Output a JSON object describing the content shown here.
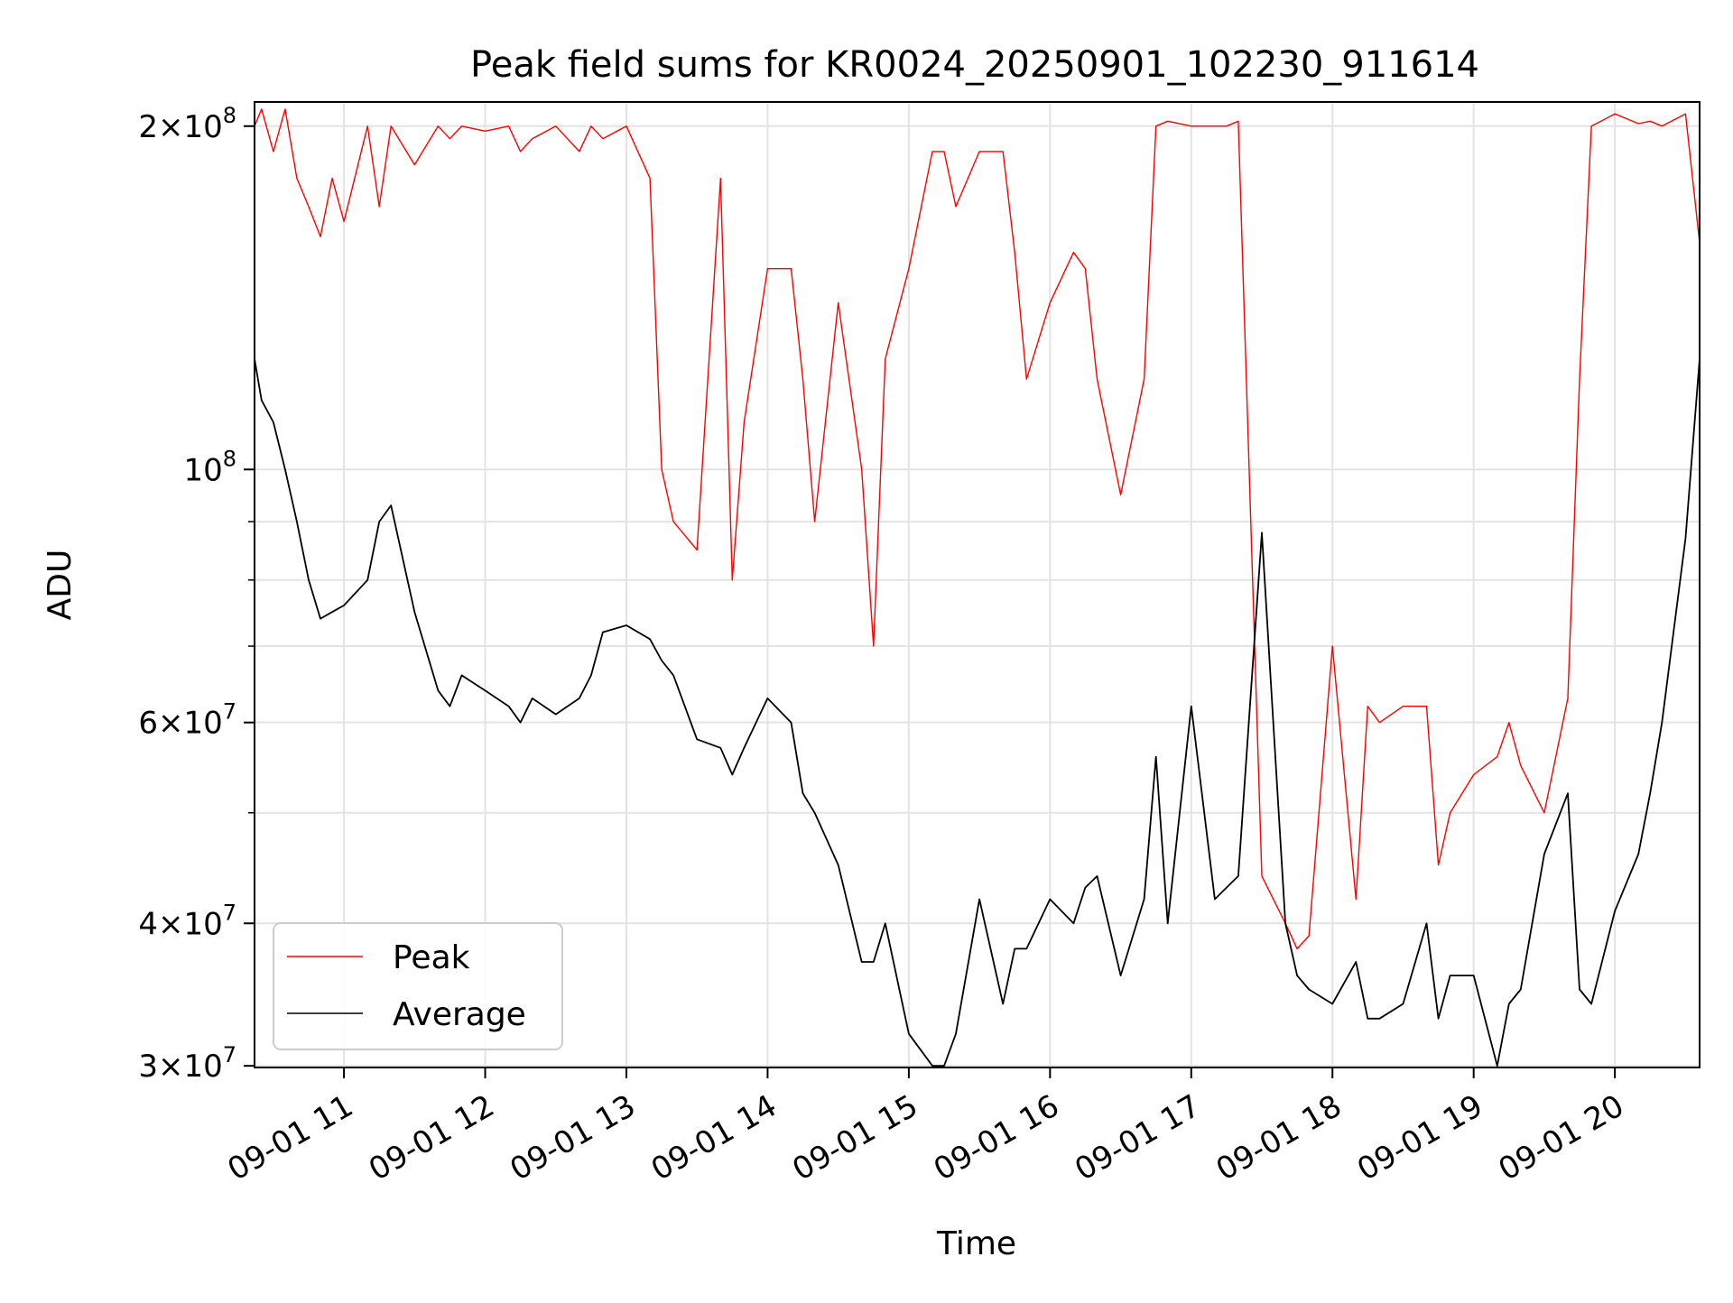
{
  "chart_data": {
    "type": "line",
    "title": "Peak field sums for KR0024_20250901_102230_911614",
    "xlabel": "Time",
    "ylabel": "ADU",
    "yscale": "log",
    "xlim": [
      "2025-09-01 10:22",
      "2025-09-01 20:36"
    ],
    "ylim": [
      29900000,
      210000000
    ],
    "grid": true,
    "legend_position": "lower-left",
    "x_ticks": [
      {
        "value": "2025-09-01 11:00",
        "label": "09-01 11"
      },
      {
        "value": "2025-09-01 12:00",
        "label": "09-01 12"
      },
      {
        "value": "2025-09-01 13:00",
        "label": "09-01 13"
      },
      {
        "value": "2025-09-01 14:00",
        "label": "09-01 14"
      },
      {
        "value": "2025-09-01 15:00",
        "label": "09-01 15"
      },
      {
        "value": "2025-09-01 16:00",
        "label": "09-01 16"
      },
      {
        "value": "2025-09-01 17:00",
        "label": "09-01 17"
      },
      {
        "value": "2025-09-01 18:00",
        "label": "09-01 18"
      },
      {
        "value": "2025-09-01 19:00",
        "label": "09-01 19"
      },
      {
        "value": "2025-09-01 20:00",
        "label": "09-01 20"
      }
    ],
    "y_ticks": [
      {
        "value": 30000000,
        "mantissa": "3",
        "exponent": "7"
      },
      {
        "value": 40000000,
        "mantissa": "4",
        "exponent": "7"
      },
      {
        "value": 60000000,
        "mantissa": "6",
        "exponent": "7"
      },
      {
        "value": 100000000,
        "mantissa": "",
        "exponent": "8"
      },
      {
        "value": 200000000,
        "mantissa": "2",
        "exponent": "8"
      }
    ],
    "y_minor_ticks": [
      50000000,
      70000000,
      80000000,
      90000000
    ],
    "series": [
      {
        "name": "Peak",
        "color": "#ff0000",
        "x": [
          "2025-09-01 10:22",
          "2025-09-01 10:25",
          "2025-09-01 10:30",
          "2025-09-01 10:35",
          "2025-09-01 10:40",
          "2025-09-01 10:45",
          "2025-09-01 10:50",
          "2025-09-01 10:55",
          "2025-09-01 11:00",
          "2025-09-01 11:10",
          "2025-09-01 11:15",
          "2025-09-01 11:20",
          "2025-09-01 11:30",
          "2025-09-01 11:40",
          "2025-09-01 11:45",
          "2025-09-01 11:50",
          "2025-09-01 12:00",
          "2025-09-01 12:10",
          "2025-09-01 12:15",
          "2025-09-01 12:20",
          "2025-09-01 12:30",
          "2025-09-01 12:40",
          "2025-09-01 12:45",
          "2025-09-01 12:50",
          "2025-09-01 13:00",
          "2025-09-01 13:10",
          "2025-09-01 13:15",
          "2025-09-01 13:20",
          "2025-09-01 13:30",
          "2025-09-01 13:40",
          "2025-09-01 13:45",
          "2025-09-01 13:50",
          "2025-09-01 14:00",
          "2025-09-01 14:10",
          "2025-09-01 14:15",
          "2025-09-01 14:20",
          "2025-09-01 14:30",
          "2025-09-01 14:40",
          "2025-09-01 14:45",
          "2025-09-01 14:50",
          "2025-09-01 15:00",
          "2025-09-01 15:10",
          "2025-09-01 15:15",
          "2025-09-01 15:20",
          "2025-09-01 15:30",
          "2025-09-01 15:40",
          "2025-09-01 15:45",
          "2025-09-01 15:50",
          "2025-09-01 16:00",
          "2025-09-01 16:10",
          "2025-09-01 16:15",
          "2025-09-01 16:20",
          "2025-09-01 16:30",
          "2025-09-01 16:40",
          "2025-09-01 16:45",
          "2025-09-01 16:50",
          "2025-09-01 17:00",
          "2025-09-01 17:10",
          "2025-09-01 17:15",
          "2025-09-01 17:20",
          "2025-09-01 17:30",
          "2025-09-01 17:40",
          "2025-09-01 17:45",
          "2025-09-01 17:50",
          "2025-09-01 18:00",
          "2025-09-01 18:10",
          "2025-09-01 18:15",
          "2025-09-01 18:20",
          "2025-09-01 18:30",
          "2025-09-01 18:40",
          "2025-09-01 18:45",
          "2025-09-01 18:50",
          "2025-09-01 19:00",
          "2025-09-01 19:10",
          "2025-09-01 19:15",
          "2025-09-01 19:20",
          "2025-09-01 19:30",
          "2025-09-01 19:40",
          "2025-09-01 19:45",
          "2025-09-01 19:50",
          "2025-09-01 20:00",
          "2025-09-01 20:10",
          "2025-09-01 20:15",
          "2025-09-01 20:20",
          "2025-09-01 20:30",
          "2025-09-01 20:36"
        ],
        "y": [
          200000000,
          207000000,
          190000000,
          207000000,
          180000000,
          170000000,
          160000000,
          180000000,
          165000000,
          200000000,
          170000000,
          200000000,
          185000000,
          200000000,
          195000000,
          200000000,
          198000000,
          200000000,
          190000000,
          195000000,
          200000000,
          190000000,
          200000000,
          195000000,
          200000000,
          180000000,
          100000000,
          90000000,
          85000000,
          180000000,
          80000000,
          110000000,
          150000000,
          150000000,
          120000000,
          90000000,
          140000000,
          100000000,
          70000000,
          125000000,
          150000000,
          190000000,
          190000000,
          170000000,
          190000000,
          190000000,
          155000000,
          120000000,
          140000000,
          155000000,
          150000000,
          120000000,
          95000000,
          120000000,
          200000000,
          202000000,
          200000000,
          200000000,
          200000000,
          202000000,
          44000000,
          40000000,
          38000000,
          39000000,
          70000000,
          42000000,
          62000000,
          60000000,
          62000000,
          62000000,
          45000000,
          50000000,
          54000000,
          56000000,
          60000000,
          55000000,
          50000000,
          63000000,
          120000000,
          200000000,
          205000000,
          201000000,
          202000000,
          200000000,
          205000000,
          158000000
        ]
      },
      {
        "name": "Average",
        "color": "#000000",
        "x": [
          "2025-09-01 10:22",
          "2025-09-01 10:25",
          "2025-09-01 10:30",
          "2025-09-01 10:35",
          "2025-09-01 10:40",
          "2025-09-01 10:45",
          "2025-09-01 10:50",
          "2025-09-01 10:55",
          "2025-09-01 11:00",
          "2025-09-01 11:10",
          "2025-09-01 11:15",
          "2025-09-01 11:20",
          "2025-09-01 11:30",
          "2025-09-01 11:40",
          "2025-09-01 11:45",
          "2025-09-01 11:50",
          "2025-09-01 12:00",
          "2025-09-01 12:10",
          "2025-09-01 12:15",
          "2025-09-01 12:20",
          "2025-09-01 12:30",
          "2025-09-01 12:40",
          "2025-09-01 12:45",
          "2025-09-01 12:50",
          "2025-09-01 13:00",
          "2025-09-01 13:10",
          "2025-09-01 13:15",
          "2025-09-01 13:20",
          "2025-09-01 13:30",
          "2025-09-01 13:40",
          "2025-09-01 13:45",
          "2025-09-01 13:50",
          "2025-09-01 14:00",
          "2025-09-01 14:10",
          "2025-09-01 14:15",
          "2025-09-01 14:20",
          "2025-09-01 14:30",
          "2025-09-01 14:40",
          "2025-09-01 14:45",
          "2025-09-01 14:50",
          "2025-09-01 15:00",
          "2025-09-01 15:10",
          "2025-09-01 15:15",
          "2025-09-01 15:20",
          "2025-09-01 15:30",
          "2025-09-01 15:40",
          "2025-09-01 15:45",
          "2025-09-01 15:50",
          "2025-09-01 16:00",
          "2025-09-01 16:10",
          "2025-09-01 16:15",
          "2025-09-01 16:20",
          "2025-09-01 16:30",
          "2025-09-01 16:40",
          "2025-09-01 16:45",
          "2025-09-01 16:50",
          "2025-09-01 17:00",
          "2025-09-01 17:10",
          "2025-09-01 17:15",
          "2025-09-01 17:20",
          "2025-09-01 17:30",
          "2025-09-01 17:40",
          "2025-09-01 17:45",
          "2025-09-01 17:50",
          "2025-09-01 18:00",
          "2025-09-01 18:10",
          "2025-09-01 18:15",
          "2025-09-01 18:20",
          "2025-09-01 18:30",
          "2025-09-01 18:40",
          "2025-09-01 18:45",
          "2025-09-01 18:50",
          "2025-09-01 19:00",
          "2025-09-01 19:10",
          "2025-09-01 19:15",
          "2025-09-01 19:20",
          "2025-09-01 19:30",
          "2025-09-01 19:40",
          "2025-09-01 19:45",
          "2025-09-01 19:50",
          "2025-09-01 20:00",
          "2025-09-01 20:10",
          "2025-09-01 20:15",
          "2025-09-01 20:20",
          "2025-09-01 20:30",
          "2025-09-01 20:36"
        ],
        "y": [
          125000000,
          115000000,
          110000000,
          100000000,
          90000000,
          80000000,
          74000000,
          75000000,
          76000000,
          80000000,
          90000000,
          93000000,
          75000000,
          64000000,
          62000000,
          66000000,
          64000000,
          62000000,
          60000000,
          63000000,
          61000000,
          63000000,
          66000000,
          72000000,
          73000000,
          71000000,
          68000000,
          66000000,
          58000000,
          57000000,
          54000000,
          57000000,
          63000000,
          60000000,
          52000000,
          50000000,
          45000000,
          37000000,
          37000000,
          40000000,
          32000000,
          30000000,
          30000000,
          32000000,
          42000000,
          34000000,
          38000000,
          38000000,
          42000000,
          40000000,
          43000000,
          44000000,
          36000000,
          42000000,
          56000000,
          40000000,
          62000000,
          42000000,
          43000000,
          44000000,
          88000000,
          40000000,
          36000000,
          35000000,
          34000000,
          37000000,
          33000000,
          33000000,
          34000000,
          40000000,
          33000000,
          36000000,
          36000000,
          30000000,
          34000000,
          35000000,
          46000000,
          52000000,
          35000000,
          34000000,
          41000000,
          46000000,
          52000000,
          60000000,
          87000000,
          125000000
        ]
      }
    ]
  }
}
